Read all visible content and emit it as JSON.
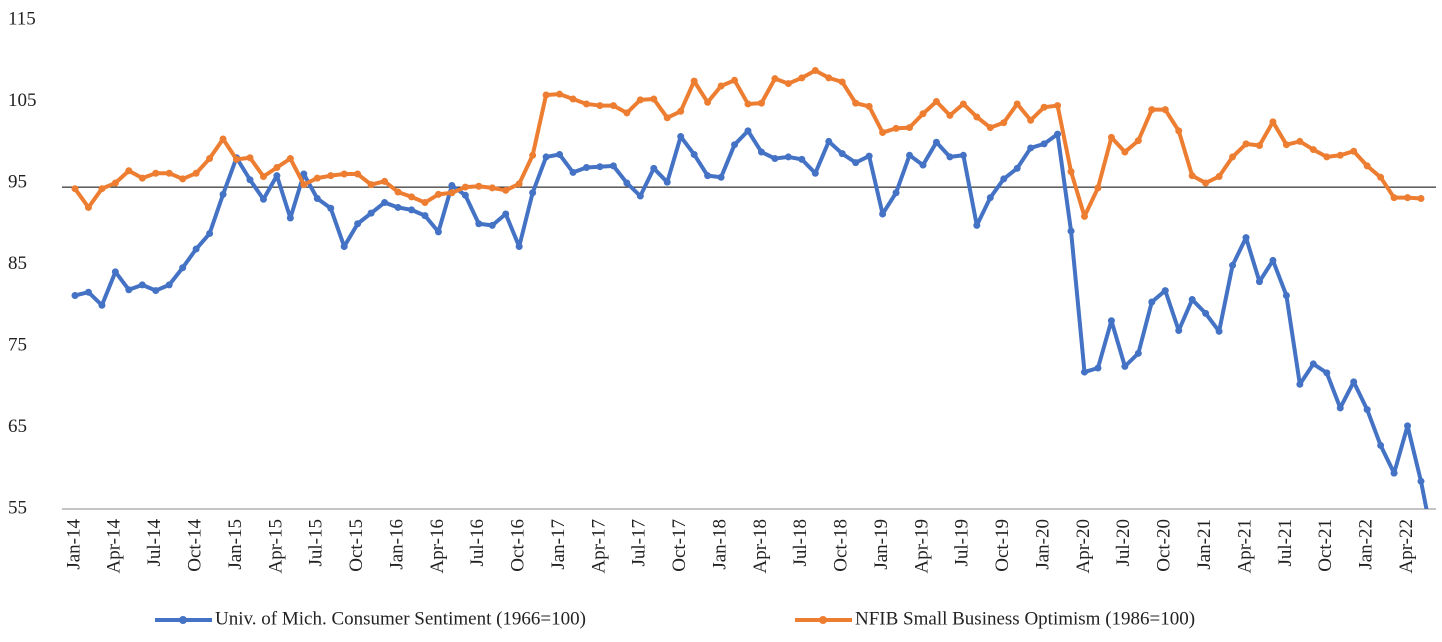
{
  "chart_data": {
    "type": "line",
    "categories": [
      "Jan-14",
      null,
      null,
      "Apr-14",
      null,
      null,
      "Jul-14",
      null,
      null,
      "Oct-14",
      null,
      null,
      "Jan-15",
      null,
      null,
      "Apr-15",
      null,
      null,
      "Jul-15",
      null,
      null,
      "Oct-15",
      null,
      null,
      "Jan-16",
      null,
      null,
      "Apr-16",
      null,
      null,
      "Jul-16",
      null,
      null,
      "Oct-16",
      null,
      null,
      "Jan-17",
      null,
      null,
      "Apr-17",
      null,
      null,
      "Jul-17",
      null,
      null,
      "Oct-17",
      null,
      null,
      "Jan-18",
      null,
      null,
      "Apr-18",
      null,
      null,
      "Jul-18",
      null,
      null,
      "Oct-18",
      null,
      null,
      "Jan-19",
      null,
      null,
      "Apr-19",
      null,
      null,
      "Jul-19",
      null,
      null,
      "Oct-19",
      null,
      null,
      "Jan-20",
      null,
      null,
      "Apr-20",
      null,
      null,
      "Jul-20",
      null,
      null,
      "Oct-20",
      null,
      null,
      "Jan-21",
      null,
      null,
      "Apr-21",
      null,
      null,
      "Jul-21",
      null,
      null,
      "Oct-21",
      null,
      null,
      "Jan-22",
      null,
      null,
      "Apr-22",
      null,
      null
    ],
    "series": [
      {
        "name": "Univ. of Mich. Consumer Sentiment (1966=100)",
        "color": "#4472c4",
        "values": [
          81.2,
          81.6,
          80.0,
          84.1,
          81.9,
          82.5,
          81.8,
          82.5,
          84.6,
          86.9,
          88.8,
          93.6,
          98.1,
          95.4,
          93.0,
          95.9,
          90.7,
          96.1,
          93.1,
          91.9,
          87.2,
          90.0,
          91.3,
          92.6,
          92.0,
          91.7,
          91.0,
          89.0,
          94.7,
          93.5,
          90.0,
          89.8,
          91.2,
          87.2,
          93.8,
          98.2,
          98.5,
          96.3,
          96.9,
          97.0,
          97.1,
          95.0,
          93.4,
          96.8,
          95.1,
          100.7,
          98.5,
          95.9,
          95.7,
          99.7,
          101.4,
          98.8,
          98.0,
          98.2,
          97.9,
          96.2,
          100.1,
          98.6,
          97.5,
          98.3,
          91.2,
          93.8,
          98.4,
          97.2,
          100.0,
          98.2,
          98.4,
          89.8,
          93.2,
          95.5,
          96.8,
          99.3,
          99.8,
          101.0,
          89.1,
          71.8,
          72.3,
          78.1,
          72.5,
          74.1,
          80.4,
          81.8,
          76.9,
          80.7,
          79.0,
          76.8,
          84.9,
          88.3,
          82.9,
          85.5,
          81.2,
          70.3,
          72.8,
          71.7,
          67.4,
          70.6,
          67.2,
          62.8,
          59.4,
          65.2,
          58.4,
          50.0
        ]
      },
      {
        "name": "NFIB Small Business Optimism (1986=100)",
        "color": "#ed7d31",
        "values": [
          94.3,
          92.0,
          94.3,
          95.0,
          96.5,
          95.6,
          96.2,
          96.2,
          95.5,
          96.2,
          98.0,
          100.4,
          97.9,
          98.1,
          95.8,
          96.9,
          98.0,
          94.8,
          95.6,
          95.9,
          96.1,
          96.1,
          94.8,
          95.2,
          93.9,
          93.3,
          92.6,
          93.6,
          93.8,
          94.5,
          94.6,
          94.4,
          94.1,
          94.9,
          98.4,
          105.8,
          105.9,
          105.3,
          104.7,
          104.5,
          104.5,
          103.6,
          105.2,
          105.3,
          103.0,
          103.8,
          107.5,
          104.9,
          106.9,
          107.6,
          104.7,
          104.8,
          107.8,
          107.2,
          107.9,
          108.8,
          107.9,
          107.4,
          104.8,
          104.4,
          101.2,
          101.7,
          101.8,
          103.5,
          105.0,
          103.3,
          104.7,
          103.1,
          101.8,
          102.4,
          104.7,
          102.7,
          104.3,
          104.5,
          96.4,
          90.9,
          94.4,
          100.6,
          98.8,
          100.2,
          104.0,
          104.0,
          101.4,
          95.9,
          95.0,
          95.8,
          98.2,
          99.8,
          99.6,
          102.5,
          99.7,
          100.1,
          99.1,
          98.2,
          98.4,
          98.9,
          97.1,
          95.7,
          93.2,
          93.2,
          93.1,
          null
        ]
      }
    ],
    "ylim": [
      55,
      115
    ],
    "yticks": [
      55,
      65,
      75,
      85,
      95,
      105,
      115
    ],
    "reference_line": 94.5,
    "grid": false,
    "legend": "bottom"
  }
}
